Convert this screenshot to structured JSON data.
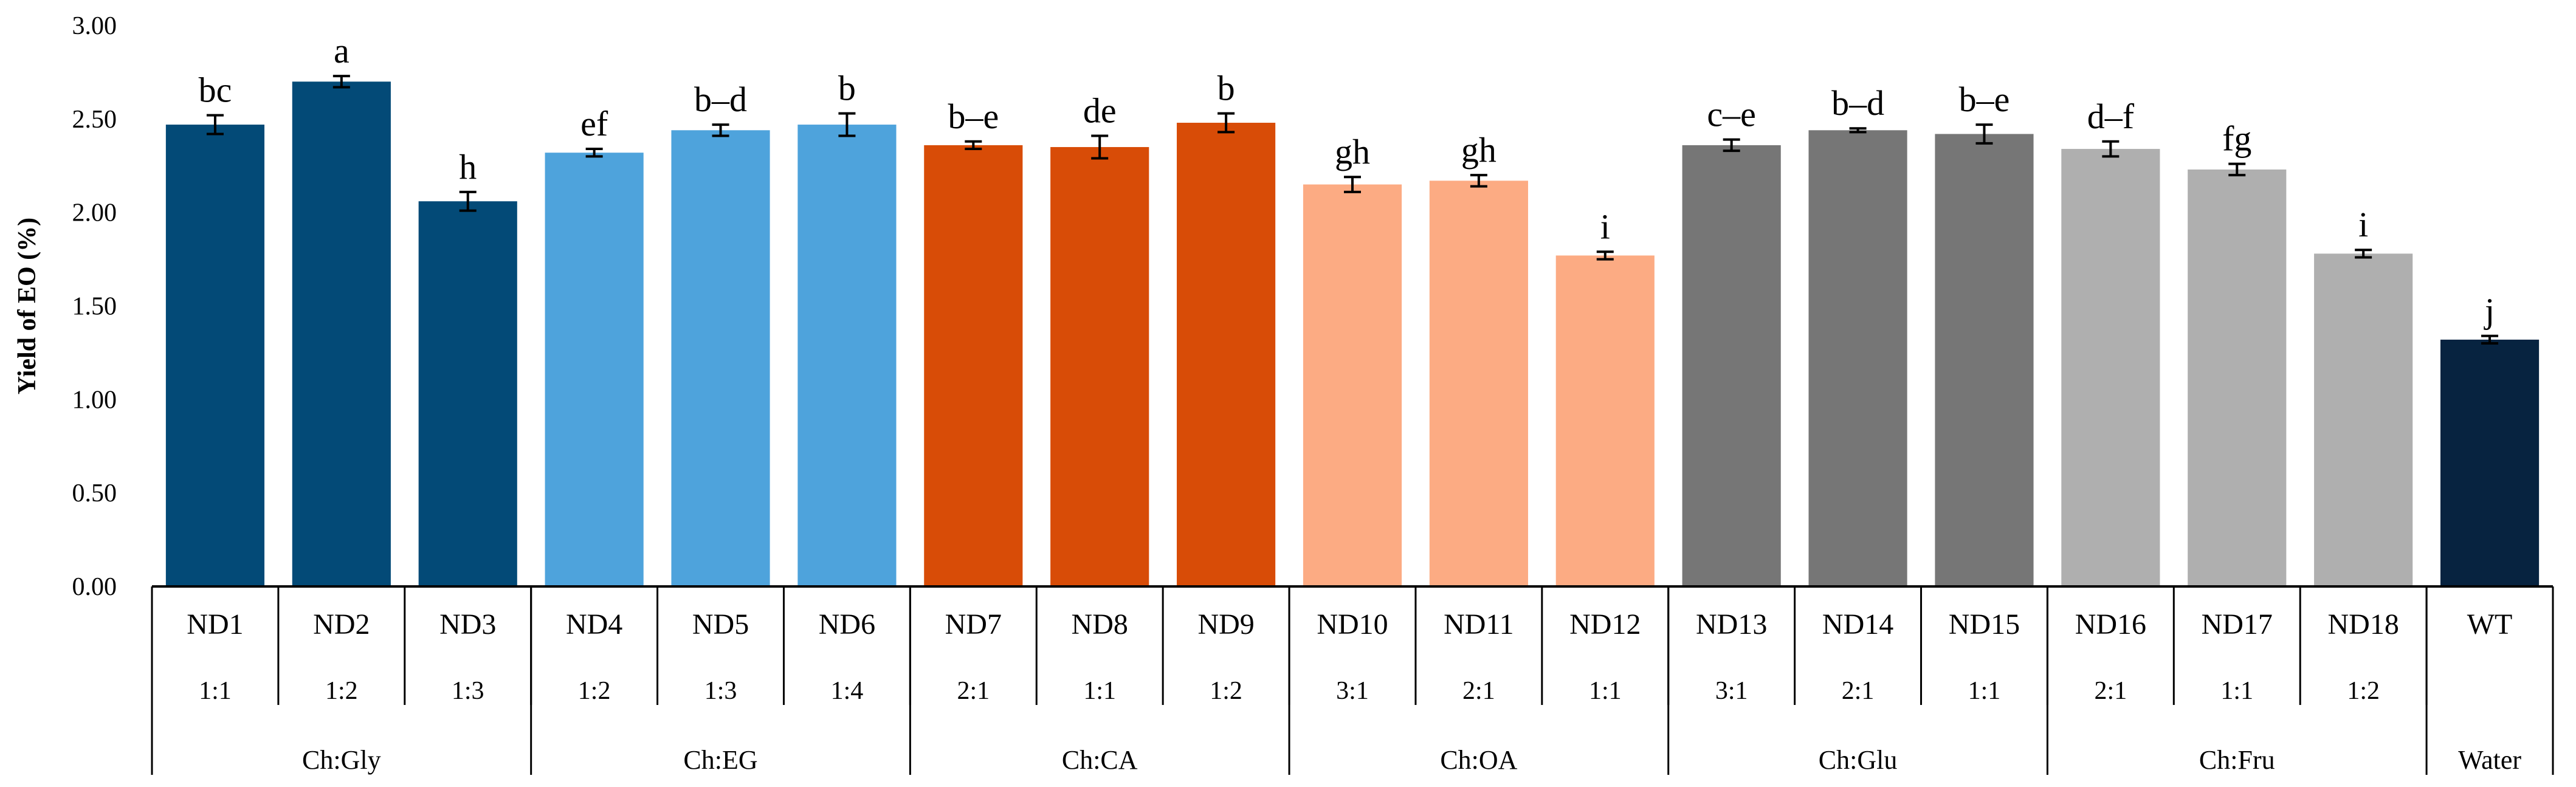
{
  "chart_data": {
    "type": "bar",
    "ylabel": "Yield of EO (%)",
    "ylim": [
      0,
      3
    ],
    "yticks": [
      "0.00",
      "0.50",
      "1.00",
      "1.50",
      "2.00",
      "2.50",
      "3.00"
    ],
    "grid": false,
    "categories": [
      "ND1",
      "ND2",
      "ND3",
      "ND4",
      "ND5",
      "ND6",
      "ND7",
      "ND8",
      "ND9",
      "ND10",
      "ND11",
      "ND12",
      "ND13",
      "ND14",
      "ND15",
      "ND16",
      "ND17",
      "ND18",
      "WT"
    ],
    "ratios": [
      "1:1",
      "1:2",
      "1:3",
      "1:2",
      "1:3",
      "1:4",
      "2:1",
      "1:1",
      "1:2",
      "3:1",
      "2:1",
      "1:1",
      "3:1",
      "2:1",
      "1:1",
      "2:1",
      "1:1",
      "1:2",
      ""
    ],
    "values": [
      2.47,
      2.7,
      2.06,
      2.32,
      2.44,
      2.47,
      2.36,
      2.35,
      2.48,
      2.15,
      2.17,
      1.77,
      2.36,
      2.44,
      2.42,
      2.34,
      2.23,
      1.78,
      1.32
    ],
    "errors": [
      0.05,
      0.03,
      0.05,
      0.02,
      0.03,
      0.06,
      0.02,
      0.06,
      0.05,
      0.04,
      0.03,
      0.02,
      0.03,
      0.01,
      0.05,
      0.04,
      0.03,
      0.02,
      0.02
    ],
    "significance": [
      "bc",
      "a",
      "h",
      "ef",
      "b–d",
      "b",
      "b–e",
      "de",
      "b",
      "gh",
      "gh",
      "i",
      "c–e",
      "b–d",
      "b–e",
      "d–f",
      "fg",
      "i",
      "j"
    ],
    "colors": [
      "#034a77",
      "#034a77",
      "#034a77",
      "#4ea3dc",
      "#4ea3dc",
      "#4ea3dc",
      "#d84c07",
      "#d84c07",
      "#d84c07",
      "#fcab83",
      "#fcab83",
      "#fcab83",
      "#767676",
      "#767676",
      "#767676",
      "#afafaf",
      "#afafaf",
      "#afafaf",
      "#072340"
    ],
    "groups": [
      {
        "label": "Ch:Gly",
        "start": 0,
        "end": 2
      },
      {
        "label": "Ch:EG",
        "start": 3,
        "end": 5
      },
      {
        "label": "Ch:CA",
        "start": 6,
        "end": 8
      },
      {
        "label": "Ch:OA",
        "start": 9,
        "end": 11
      },
      {
        "label": "Ch:Glu",
        "start": 12,
        "end": 14
      },
      {
        "label": "Ch:Fru",
        "start": 15,
        "end": 17
      },
      {
        "label": "Water",
        "start": 18,
        "end": 18
      }
    ]
  }
}
